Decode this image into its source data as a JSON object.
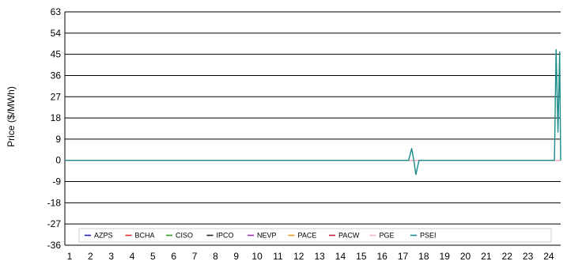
{
  "chart_data": {
    "type": "line",
    "title": "",
    "xlabel": "",
    "ylabel": "Price ($/MWh)",
    "ylim": [
      -36,
      63
    ],
    "yticks": [
      63,
      54,
      45,
      36,
      27,
      18,
      9,
      0,
      -9,
      -18,
      -27,
      -36
    ],
    "xlim": [
      1,
      24.8
    ],
    "xticks": [
      1,
      2,
      3,
      4,
      5,
      6,
      7,
      8,
      9,
      10,
      11,
      12,
      13,
      14,
      15,
      16,
      17,
      18,
      19,
      20,
      21,
      22,
      23,
      24
    ],
    "grid": "horizontal",
    "legend": "bottom-inside",
    "series": [
      {
        "name": "AZPS",
        "color": "#1f1fbf",
        "x": [
          1,
          24.8
        ],
        "y": [
          0,
          0
        ]
      },
      {
        "name": "BCHA",
        "color": "#e03030",
        "x": [
          1,
          24.8
        ],
        "y": [
          0,
          0
        ]
      },
      {
        "name": "CISO",
        "color": "#2ca02c",
        "x": [
          1,
          24.8
        ],
        "y": [
          0,
          0
        ]
      },
      {
        "name": "IPCO",
        "color": "#222222",
        "x": [
          1,
          24.8
        ],
        "y": [
          0,
          0
        ]
      },
      {
        "name": "NEVP",
        "color": "#9b30b0",
        "x": [
          1,
          24.8
        ],
        "y": [
          0,
          0
        ]
      },
      {
        "name": "PACE",
        "color": "#f0a020",
        "x": [
          1,
          24.8
        ],
        "y": [
          0,
          0
        ]
      },
      {
        "name": "PACW",
        "color": "#c02040",
        "x": [
          1,
          24.8
        ],
        "y": [
          0,
          0
        ]
      },
      {
        "name": "PGE",
        "color": "#f4b6c2",
        "x": [
          1,
          24.5,
          24.65,
          24.8
        ],
        "y": [
          0,
          0,
          0,
          0
        ]
      },
      {
        "name": "PSEI",
        "color": "#1a8a8a",
        "x": [
          1,
          17.5,
          17.65,
          17.75,
          17.85,
          18,
          24.5,
          24.58,
          24.67,
          24.75,
          24.8
        ],
        "y": [
          0,
          0,
          5,
          0,
          -6,
          0,
          0,
          47,
          12,
          46,
          0
        ]
      }
    ]
  }
}
